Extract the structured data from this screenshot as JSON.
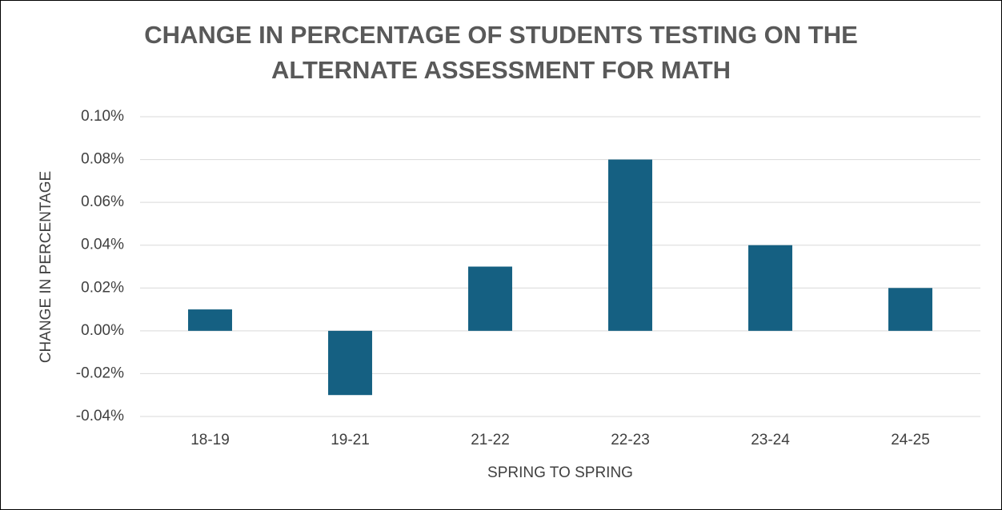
{
  "chart_data": {
    "type": "bar",
    "title": "CHANGE IN PERCENTAGE OF STUDENTS TESTING ON THE ALTERNATE ASSESSMENT FOR MATH",
    "x_label": "SPRING TO SPRING",
    "y_label": "CHANGE IN PERCENTAGE",
    "categories": [
      "18-19",
      "19-21",
      "21-22",
      "22-23",
      "23-24",
      "24-25"
    ],
    "values": [
      0.01,
      -0.03,
      0.03,
      0.08,
      0.04,
      0.02
    ],
    "color": "#156082",
    "ylim": [
      -0.04,
      0.1
    ],
    "yticks": [
      {
        "value": -0.04,
        "label": "-0.04%"
      },
      {
        "value": -0.02,
        "label": "-0.02%"
      },
      {
        "value": 0,
        "label": "0.00%"
      },
      {
        "value": 0.02,
        "label": "0.02%"
      },
      {
        "value": 0.04,
        "label": "0.04%"
      },
      {
        "value": 0.06,
        "label": "0.06%"
      },
      {
        "value": 0.08,
        "label": "0.08%"
      },
      {
        "value": 0.1,
        "label": "0.10%"
      }
    ],
    "grid": true
  }
}
